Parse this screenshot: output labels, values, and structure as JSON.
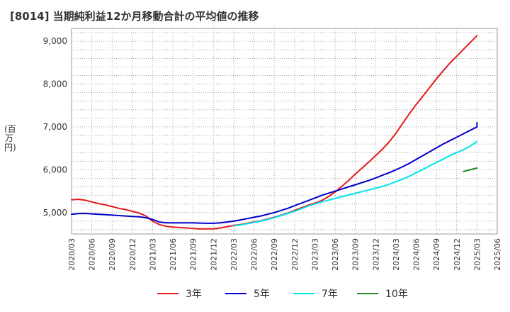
{
  "chart_data": {
    "type": "line",
    "title": "[8014]  当期純利益12か月移動合計の平均値の推移",
    "ylabel": "(百万円)",
    "xlabel": "",
    "x_ticks": [
      "2020/03",
      "2020/06",
      "2020/09",
      "2020/12",
      "2021/03",
      "2021/06",
      "2021/09",
      "2021/12",
      "2022/03",
      "2022/06",
      "2022/09",
      "2022/12",
      "2023/03",
      "2023/06",
      "2023/09",
      "2023/12",
      "2024/03",
      "2024/06",
      "2024/09",
      "2024/12",
      "2025/03",
      "2025/06"
    ],
    "y_ticks": [
      5000,
      6000,
      7000,
      8000,
      9000
    ],
    "y_tick_labels": [
      "5,000",
      "6,000",
      "7,000",
      "8,000",
      "9,000"
    ],
    "ylim": [
      4500,
      9300
    ],
    "grid": true,
    "legend_position": "bottom",
    "series": [
      {
        "name": "3年",
        "color": "#e41a1c",
        "points": [
          [
            "2020/03",
            5300
          ],
          [
            "2020/04",
            5310
          ],
          [
            "2020/05",
            5290
          ],
          [
            "2020/06",
            5250
          ],
          [
            "2020/07",
            5210
          ],
          [
            "2020/08",
            5180
          ],
          [
            "2020/09",
            5140
          ],
          [
            "2020/10",
            5100
          ],
          [
            "2020/11",
            5070
          ],
          [
            "2020/12",
            5030
          ],
          [
            "2021/01",
            4990
          ],
          [
            "2021/02",
            4920
          ],
          [
            "2021/03",
            4800
          ],
          [
            "2021/04",
            4720
          ],
          [
            "2021/05",
            4680
          ],
          [
            "2021/06",
            4660
          ],
          [
            "2021/07",
            4650
          ],
          [
            "2021/08",
            4640
          ],
          [
            "2021/09",
            4630
          ],
          [
            "2021/10",
            4620
          ],
          [
            "2021/11",
            4620
          ],
          [
            "2021/12",
            4620
          ],
          [
            "2022/01",
            4640
          ],
          [
            "2022/02",
            4670
          ],
          [
            "2022/03",
            4700
          ],
          [
            "2022/04",
            4720
          ],
          [
            "2022/05",
            4750
          ],
          [
            "2022/06",
            4780
          ],
          [
            "2022/07",
            4810
          ],
          [
            "2022/08",
            4850
          ],
          [
            "2022/09",
            4890
          ],
          [
            "2022/10",
            4940
          ],
          [
            "2022/11",
            4990
          ],
          [
            "2022/12",
            5050
          ],
          [
            "2023/01",
            5110
          ],
          [
            "2023/02",
            5170
          ],
          [
            "2023/03",
            5220
          ],
          [
            "2023/04",
            5280
          ],
          [
            "2023/05",
            5370
          ],
          [
            "2023/06",
            5480
          ],
          [
            "2023/07",
            5610
          ],
          [
            "2023/08",
            5750
          ],
          [
            "2023/09",
            5900
          ],
          [
            "2023/10",
            6040
          ],
          [
            "2023/11",
            6180
          ],
          [
            "2023/12",
            6330
          ],
          [
            "2024/01",
            6480
          ],
          [
            "2024/02",
            6650
          ],
          [
            "2024/03",
            6850
          ],
          [
            "2024/04",
            7080
          ],
          [
            "2024/05",
            7310
          ],
          [
            "2024/06",
            7520
          ],
          [
            "2024/07",
            7720
          ],
          [
            "2024/08",
            7920
          ],
          [
            "2024/09",
            8120
          ],
          [
            "2024/10",
            8310
          ],
          [
            "2024/11",
            8490
          ],
          [
            "2024/12",
            8650
          ],
          [
            "2025/01",
            8810
          ],
          [
            "2025/02",
            8970
          ],
          [
            "2025/03",
            9130
          ]
        ]
      },
      {
        "name": "5年",
        "color": "#0000cc",
        "points": [
          [
            "2020/03",
            4960
          ],
          [
            "2020/04",
            4975
          ],
          [
            "2020/05",
            4980
          ],
          [
            "2020/06",
            4970
          ],
          [
            "2020/07",
            4960
          ],
          [
            "2020/08",
            4950
          ],
          [
            "2020/09",
            4940
          ],
          [
            "2020/10",
            4930
          ],
          [
            "2020/11",
            4920
          ],
          [
            "2020/12",
            4910
          ],
          [
            "2021/01",
            4900
          ],
          [
            "2021/02",
            4880
          ],
          [
            "2021/03",
            4840
          ],
          [
            "2021/04",
            4780
          ],
          [
            "2021/05",
            4760
          ],
          [
            "2021/06",
            4760
          ],
          [
            "2021/07",
            4760
          ],
          [
            "2021/08",
            4760
          ],
          [
            "2021/09",
            4760
          ],
          [
            "2021/10",
            4755
          ],
          [
            "2021/11",
            4750
          ],
          [
            "2021/12",
            4750
          ],
          [
            "2022/01",
            4760
          ],
          [
            "2022/02",
            4780
          ],
          [
            "2022/03",
            4800
          ],
          [
            "2022/04",
            4830
          ],
          [
            "2022/05",
            4860
          ],
          [
            "2022/06",
            4890
          ],
          [
            "2022/07",
            4920
          ],
          [
            "2022/08",
            4960
          ],
          [
            "2022/09",
            5000
          ],
          [
            "2022/10",
            5050
          ],
          [
            "2022/11",
            5100
          ],
          [
            "2022/12",
            5160
          ],
          [
            "2023/01",
            5220
          ],
          [
            "2023/02",
            5280
          ],
          [
            "2023/03",
            5340
          ],
          [
            "2023/04",
            5400
          ],
          [
            "2023/05",
            5450
          ],
          [
            "2023/06",
            5500
          ],
          [
            "2023/07",
            5550
          ],
          [
            "2023/08",
            5600
          ],
          [
            "2023/09",
            5650
          ],
          [
            "2023/10",
            5700
          ],
          [
            "2023/11",
            5750
          ],
          [
            "2023/12",
            5810
          ],
          [
            "2024/01",
            5870
          ],
          [
            "2024/02",
            5930
          ],
          [
            "2024/03",
            6000
          ],
          [
            "2024/04",
            6070
          ],
          [
            "2024/05",
            6150
          ],
          [
            "2024/06",
            6240
          ],
          [
            "2024/07",
            6330
          ],
          [
            "2024/08",
            6420
          ],
          [
            "2024/09",
            6510
          ],
          [
            "2024/10",
            6600
          ],
          [
            "2024/11",
            6680
          ],
          [
            "2024/12",
            6760
          ],
          [
            "2025/01",
            6840
          ],
          [
            "2025/02",
            6920
          ],
          [
            "2025/03",
            7000
          ],
          [
            "2025/03",
            7100
          ]
        ]
      },
      {
        "name": "7年",
        "color": "#00e5ee",
        "points": [
          [
            "2022/03",
            4690
          ],
          [
            "2022/04",
            4710
          ],
          [
            "2022/05",
            4740
          ],
          [
            "2022/06",
            4770
          ],
          [
            "2022/07",
            4800
          ],
          [
            "2022/08",
            4840
          ],
          [
            "2022/09",
            4880
          ],
          [
            "2022/10",
            4930
          ],
          [
            "2022/11",
            4980
          ],
          [
            "2022/12",
            5030
          ],
          [
            "2023/01",
            5090
          ],
          [
            "2023/02",
            5150
          ],
          [
            "2023/03",
            5200
          ],
          [
            "2023/04",
            5250
          ],
          [
            "2023/05",
            5290
          ],
          [
            "2023/06",
            5330
          ],
          [
            "2023/07",
            5370
          ],
          [
            "2023/08",
            5410
          ],
          [
            "2023/09",
            5450
          ],
          [
            "2023/10",
            5490
          ],
          [
            "2023/11",
            5530
          ],
          [
            "2023/12",
            5570
          ],
          [
            "2024/01",
            5610
          ],
          [
            "2024/02",
            5660
          ],
          [
            "2024/03",
            5720
          ],
          [
            "2024/04",
            5780
          ],
          [
            "2024/05",
            5850
          ],
          [
            "2024/06",
            5930
          ],
          [
            "2024/07",
            6010
          ],
          [
            "2024/08",
            6090
          ],
          [
            "2024/09",
            6170
          ],
          [
            "2024/10",
            6250
          ],
          [
            "2024/11",
            6330
          ],
          [
            "2024/12",
            6400
          ],
          [
            "2025/01",
            6470
          ],
          [
            "2025/02",
            6550
          ],
          [
            "2025/03",
            6660
          ]
        ]
      },
      {
        "name": "10年",
        "color": "#228b22",
        "points": [
          [
            "2025/01",
            5960
          ],
          [
            "2025/02",
            6000
          ],
          [
            "2025/03",
            6040
          ]
        ]
      }
    ]
  }
}
